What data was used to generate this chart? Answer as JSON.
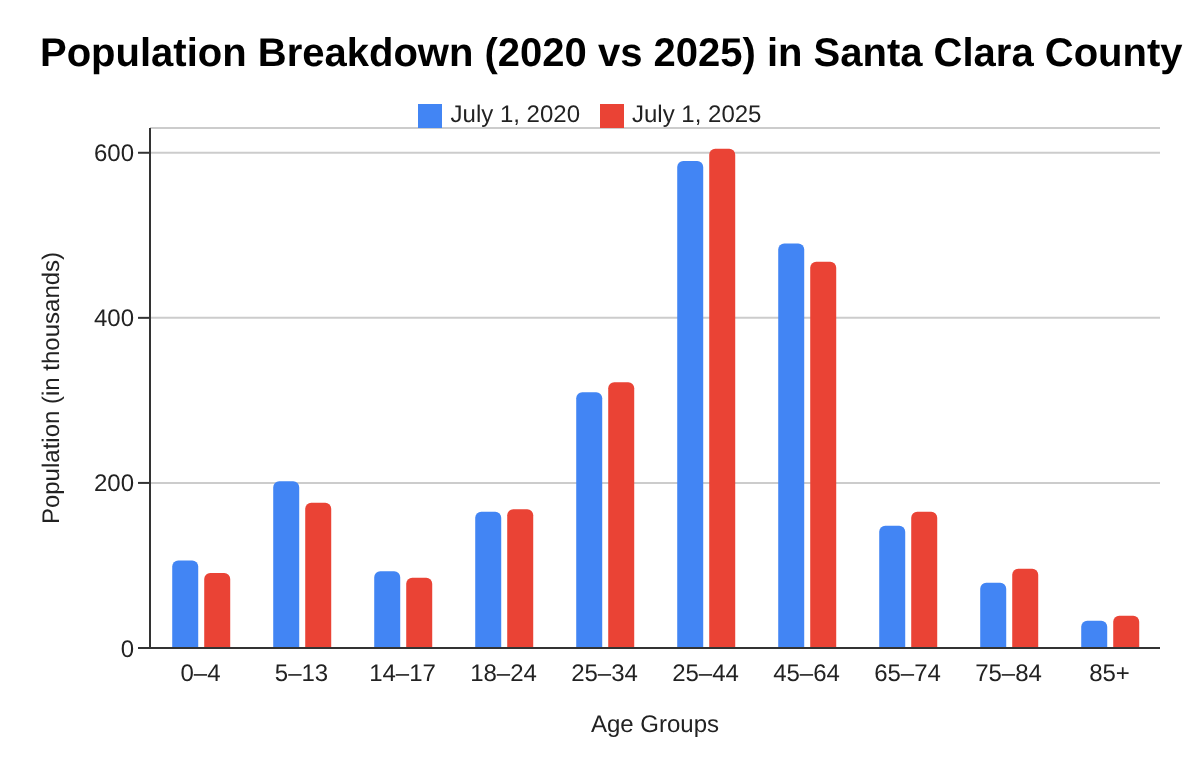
{
  "chart_data": {
    "type": "bar",
    "title": "Population Breakdown (2020 vs 2025) in Santa Clara County",
    "xlabel": "Age Groups",
    "ylabel": "Population (in thousands)",
    "categories": [
      "0–4",
      "5–13",
      "14–17",
      "18–24",
      "25–34",
      "25–44",
      "45–64",
      "65–74",
      "75–84",
      "85+"
    ],
    "series": [
      {
        "name": "July 1, 2020",
        "color": "#4285f4",
        "values": [
          106,
          202,
          93,
          165,
          310,
          590,
          490,
          148,
          79,
          33
        ]
      },
      {
        "name": "July 1, 2025",
        "color": "#ea4335",
        "values": [
          91,
          176,
          85,
          168,
          322,
          605,
          468,
          165,
          96,
          39
        ]
      }
    ],
    "ylim": [
      0,
      630
    ],
    "yticks": [
      0,
      200,
      400,
      600
    ],
    "grid": "y",
    "legend": "top"
  }
}
